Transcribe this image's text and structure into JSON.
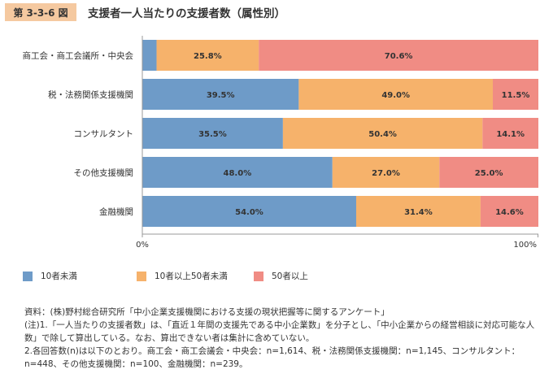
{
  "figure": {
    "number": "第 3-3-6 図",
    "title": "支援者一人当たりの支援者数（属性別）"
  },
  "chart_data": {
    "type": "bar",
    "orientation": "horizontal",
    "stacked": true,
    "percent_stacked": true,
    "categories": [
      "商工会・商工会議所・中央会",
      "税・法務関係支援機関",
      "コンサルタント",
      "その他支援機関",
      "金融機関"
    ],
    "series": [
      {
        "name": "10者未満",
        "color": "#6e9bc8",
        "values": [
          3.6,
          39.5,
          35.5,
          48.0,
          54.0
        ],
        "labels": [
          "",
          "39.5%",
          "35.5%",
          "48.0%",
          "54.0%"
        ]
      },
      {
        "name": "10者以上50者未満",
        "color": "#f6b26b",
        "values": [
          25.8,
          49.0,
          50.4,
          27.0,
          31.4
        ],
        "labels": [
          "25.8%",
          "49.0%",
          "50.4%",
          "27.0%",
          "31.4%"
        ]
      },
      {
        "name": "50者以上",
        "color": "#f08c84",
        "values": [
          70.6,
          11.5,
          14.1,
          25.0,
          14.6
        ],
        "labels": [
          "70.6%",
          "11.5%",
          "14.1%",
          "25.0%",
          "14.6%"
        ]
      }
    ],
    "xlim": [
      0,
      100
    ],
    "x_ticks": [
      "0%",
      "100%"
    ],
    "grid": false,
    "legend_position": "bottom"
  },
  "notes": [
    "資料：(株)野村総合研究所「中小企業支援機関における支援の現状把握等に関するアンケート」",
    "(注)1.「一人当たりの支援者数」は、「直近１年間の支援先である中小企業数」を分子とし、「中小企業からの経営相談に対応可能な人数」で除して算出している。なお、算出できない者は集計に含めていない。",
    "2.各回答数(n)は以下のとおり。商工会・商工会議会・中央会：n=1,614、税・法務関係支援機関：n=1,145、コンサルタント：n=448、その他支援機関：n=100、金融機関：n=239。"
  ]
}
